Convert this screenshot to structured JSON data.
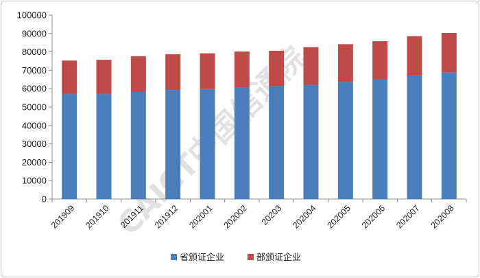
{
  "chart_data": {
    "type": "bar",
    "stacked": true,
    "title": "",
    "xlabel": "",
    "ylabel": "",
    "categories": [
      "201909",
      "201910",
      "201911",
      "201912",
      "202001",
      "202002",
      "20203",
      "202004",
      "202005",
      "202006",
      "202007",
      "202008"
    ],
    "series": [
      {
        "name": "省颁证企业",
        "color": "#4a7ebb",
        "values": [
          57300,
          57300,
          58400,
          59300,
          59800,
          60600,
          61400,
          62100,
          63700,
          65100,
          67200,
          68800
        ]
      },
      {
        "name": "部颁证企业",
        "color": "#be4b48",
        "values": [
          18000,
          18400,
          19200,
          19400,
          19400,
          19600,
          19200,
          20500,
          20500,
          20700,
          21300,
          21500
        ]
      }
    ],
    "ylim": [
      0,
      100000
    ],
    "yticks": [
      0,
      10000,
      20000,
      30000,
      40000,
      50000,
      60000,
      70000,
      80000,
      90000,
      100000
    ],
    "grid": false,
    "legend_position": "bottom"
  },
  "watermark": {
    "text": "CAICT中国信通院",
    "color": "#c8c8c8"
  }
}
